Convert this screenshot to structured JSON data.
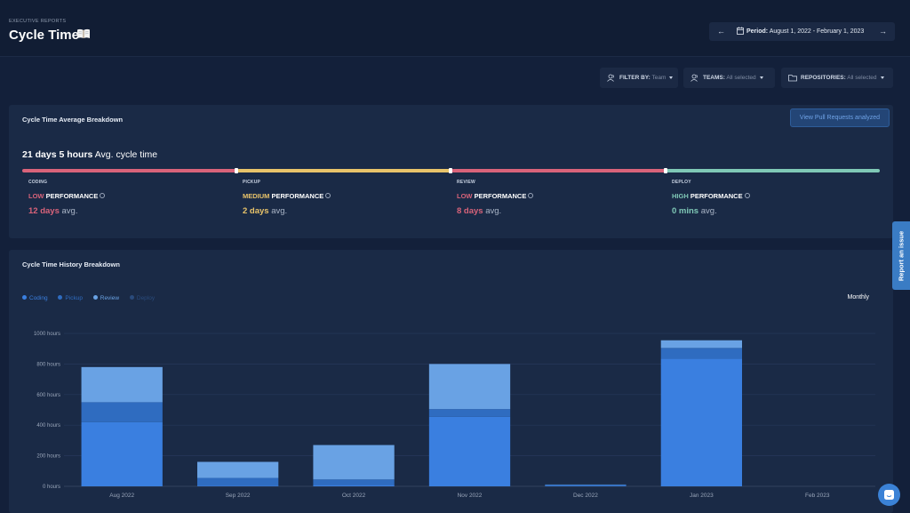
{
  "header": {
    "eyebrow": "EXECUTIVE REPORTS",
    "title": "Cycle Time",
    "title_icon": "book-icon",
    "period_label": "Period:",
    "period_value": "August 1, 2022 - February 1, 2023"
  },
  "filters": {
    "filter_by": {
      "label": "FILTER BY:",
      "value": "Team"
    },
    "teams": {
      "label": "TEAMS:",
      "value": "All selected"
    },
    "repositories": {
      "label": "REPOSITORIES:",
      "value": "All selected"
    }
  },
  "breakdown": {
    "title": "Cycle Time Average Breakdown",
    "button": "View Pull Requests analyzed",
    "avg_value": "21 days 5 hours",
    "avg_label": "Avg. cycle time",
    "stages": [
      {
        "name": "CODING",
        "level": "LOW",
        "perf": "PERFORMANCE",
        "value": "12 days",
        "unit": "avg.",
        "color": "#d9637a"
      },
      {
        "name": "PICKUP",
        "level": "MEDIUM",
        "perf": "PERFORMANCE",
        "value": "2 days",
        "unit": "avg.",
        "color": "#e8c36a"
      },
      {
        "name": "REVIEW",
        "level": "LOW",
        "perf": "PERFORMANCE",
        "value": "8 days",
        "unit": "avg.",
        "color": "#d9637a"
      },
      {
        "name": "DEPLOY",
        "level": "HIGH",
        "perf": "PERFORMANCE",
        "value": "0 mins",
        "unit": "avg.",
        "color": "#7fc8b6"
      }
    ]
  },
  "history": {
    "title": "Cycle Time History Breakdown",
    "period_toggle": "Monthly",
    "legend": [
      {
        "label": "Coding",
        "color": "#3a7fe0",
        "active": true
      },
      {
        "label": "Pickup",
        "color": "#2f6cc0",
        "active": true
      },
      {
        "label": "Review",
        "color": "#69a2e4",
        "active": true
      },
      {
        "label": "Deploy",
        "color": "#2a4b7c",
        "active": false
      }
    ]
  },
  "chart_data": {
    "type": "bar",
    "stacked": true,
    "categories": [
      "Aug 2022",
      "Sep 2022",
      "Oct 2022",
      "Nov 2022",
      "Dec 2022",
      "Jan 2023",
      "Feb 2023"
    ],
    "series": [
      {
        "name": "Coding",
        "color": "#3a7fe0",
        "values": [
          420,
          5,
          10,
          455,
          5,
          835,
          0
        ]
      },
      {
        "name": "Pickup",
        "color": "#2f6cc0",
        "values": [
          130,
          50,
          35,
          50,
          5,
          70,
          0
        ]
      },
      {
        "name": "Review",
        "color": "#69a2e4",
        "values": [
          230,
          105,
          225,
          295,
          2,
          50,
          0
        ]
      },
      {
        "name": "Deploy",
        "color": "#2a4b7c",
        "values": [
          0,
          0,
          0,
          0,
          0,
          0,
          0
        ]
      }
    ],
    "yticks": [
      "0 hours",
      "200 hours",
      "400 hours",
      "600 hours",
      "800 hours",
      "1000 hours"
    ],
    "ylim": [
      0,
      1000
    ],
    "grid": true
  },
  "widgets": {
    "report_issue": "Report an issue",
    "chat_icon": "chat-icon"
  }
}
